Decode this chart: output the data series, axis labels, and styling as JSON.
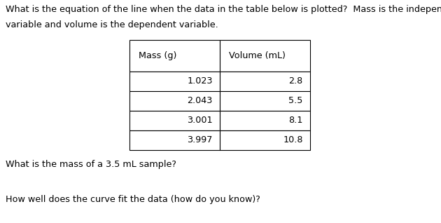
{
  "title_line1": "What is the equation of the line when the data in the table below is plotted?  Mass is the independent",
  "title_line2": "variable and volume is the dependent variable.",
  "col_headers": [
    "Mass (g)",
    "Volume (mL)"
  ],
  "rows": [
    [
      "1.023",
      "2.8"
    ],
    [
      "2.043",
      "5.5"
    ],
    [
      "3.001",
      "8.1"
    ],
    [
      "3.997",
      "10.8"
    ]
  ],
  "question1": "What is the mass of a 3.5 mL sample?",
  "question2": "How well does the curve fit the data (how do you know)?",
  "bg_color": "#ffffff",
  "text_color": "#000000",
  "font_size": 9.2,
  "table_font_size": 9.2
}
